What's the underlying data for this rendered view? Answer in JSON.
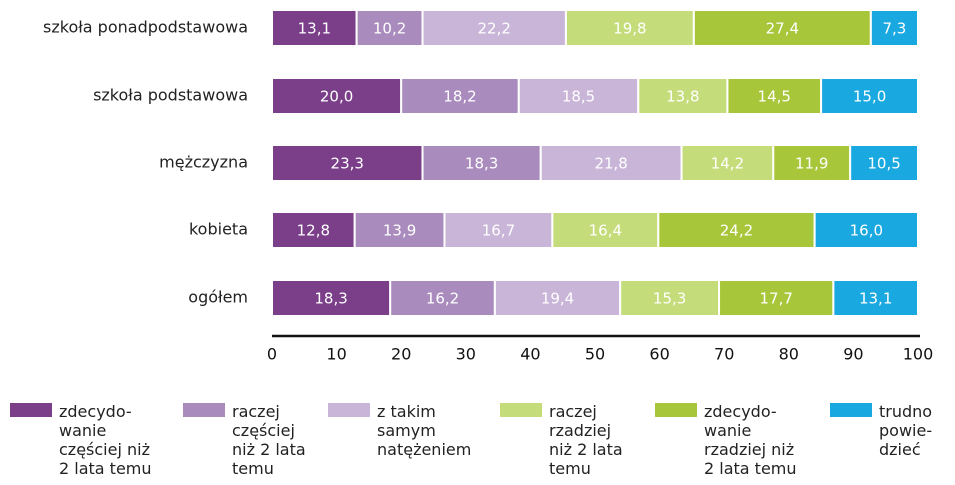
{
  "chart_data": {
    "type": "stacked-barh",
    "categories": [
      "szkoła ponadpodstawowa",
      "szkoła podstawowa",
      "mężczyzna",
      "kobieta",
      "ogółem"
    ],
    "series": [
      {
        "name": "zdecydo-\nwanie\nczęściej niż\n2 lata temu",
        "color": "#7b3f8a",
        "values": [
          13.1,
          20.0,
          23.3,
          12.8,
          18.3
        ],
        "value_labels": [
          "13,1",
          "20,0",
          "23,3",
          "12,8",
          "18,3"
        ]
      },
      {
        "name": "raczej\nczęściej\nniż 2 lata\ntemu",
        "color": "#a98bbd",
        "values": [
          10.2,
          18.2,
          18.3,
          13.9,
          16.2
        ],
        "value_labels": [
          "10,2",
          "18,2",
          "18,3",
          "13,9",
          "16,2"
        ]
      },
      {
        "name": "z takim\nsamym\nnatężeniem",
        "color": "#c9b5d8",
        "values": [
          22.2,
          18.5,
          21.8,
          16.7,
          19.4
        ],
        "value_labels": [
          "22,2",
          "18,5",
          "21,8",
          "16,7",
          "19,4"
        ]
      },
      {
        "name": "raczej\nrzadziej\nniż 2 lata\ntemu",
        "color": "#c5dc7a",
        "values": [
          19.8,
          13.8,
          14.2,
          16.4,
          15.3
        ],
        "value_labels": [
          "19,8",
          "13,8",
          "14,2",
          "16,4",
          "15,3"
        ]
      },
      {
        "name": "zdecydo-\nwanie\nrzadziej niż\n2 lata temu",
        "color": "#a8c63a",
        "values": [
          27.4,
          14.5,
          11.9,
          24.2,
          17.7
        ],
        "value_labels": [
          "27,4",
          "14,5",
          "11,9",
          "24,2",
          "17,7"
        ]
      },
      {
        "name": "trudno\npowie-\ndzieć",
        "color": "#1aa8e0",
        "values": [
          7.3,
          15.0,
          10.5,
          16.0,
          13.1
        ],
        "value_labels": [
          "7,3",
          "15,0",
          "10,5",
          "16,0",
          "13,1"
        ]
      }
    ],
    "xlim": [
      0,
      100
    ],
    "xticks": [
      0,
      10,
      20,
      30,
      40,
      50,
      60,
      70,
      80,
      90,
      100
    ]
  }
}
